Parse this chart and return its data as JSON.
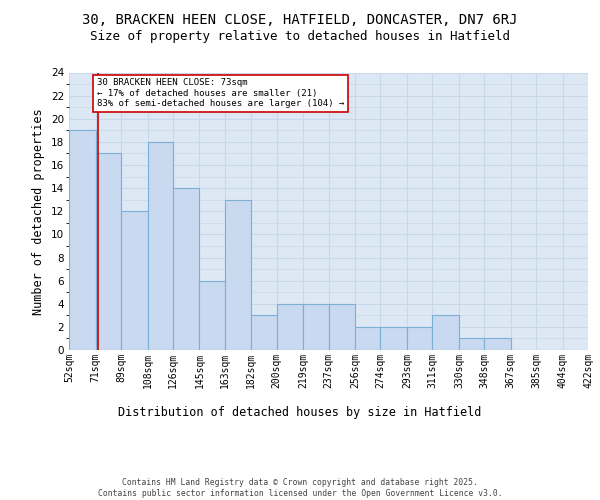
{
  "title_line1": "30, BRACKEN HEEN CLOSE, HATFIELD, DONCASTER, DN7 6RJ",
  "title_line2": "Size of property relative to detached houses in Hatfield",
  "xlabel": "Distribution of detached houses by size in Hatfield",
  "ylabel": "Number of detached properties",
  "bar_edges": [
    52,
    71,
    89,
    108,
    126,
    145,
    163,
    182,
    200,
    219,
    237,
    256,
    274,
    293,
    311,
    330,
    348,
    367,
    385,
    404,
    422
  ],
  "bar_heights": [
    19,
    17,
    12,
    18,
    14,
    6,
    13,
    3,
    4,
    4,
    4,
    2,
    2,
    2,
    3,
    1,
    1,
    0,
    0,
    0
  ],
  "bar_color": "#c9d9f0",
  "bar_edge_color": "#7bafd4",
  "vline_x": 73,
  "vline_color": "#cc0000",
  "annotation_text": "30 BRACKEN HEEN CLOSE: 73sqm\n← 17% of detached houses are smaller (21)\n83% of semi-detached houses are larger (104) →",
  "annotation_box_edgecolor": "#cc0000",
  "ylim": [
    0,
    24
  ],
  "yticks": [
    0,
    2,
    4,
    6,
    8,
    10,
    12,
    14,
    16,
    18,
    20,
    22,
    24
  ],
  "grid_color": "#c8d8e8",
  "background_color": "#dde8f5",
  "footer_text": "Contains HM Land Registry data © Crown copyright and database right 2025.\nContains public sector information licensed under the Open Government Licence v3.0.",
  "title_fontsize": 10,
  "subtitle_fontsize": 9,
  "tick_fontsize": 7,
  "label_fontsize": 8.5,
  "footer_fontsize": 5.8
}
